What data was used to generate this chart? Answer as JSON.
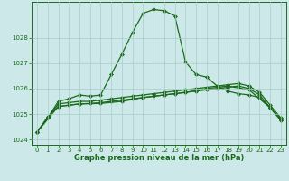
{
  "title": "Graphe pression niveau de la mer (hPa)",
  "bg_color": "#cce8e8",
  "grid_color": "#aacccc",
  "line_color": "#1a6b1a",
  "xlim": [
    -0.5,
    23.5
  ],
  "ylim": [
    1023.8,
    1029.4
  ],
  "yticks": [
    1024,
    1025,
    1026,
    1027,
    1028
  ],
  "xticks": [
    0,
    1,
    2,
    3,
    4,
    5,
    6,
    7,
    8,
    9,
    10,
    11,
    12,
    13,
    14,
    15,
    16,
    17,
    18,
    19,
    20,
    21,
    22,
    23
  ],
  "series_main": {
    "x": [
      0,
      1,
      2,
      3,
      4,
      5,
      6,
      7,
      8,
      9,
      10,
      11,
      12,
      13,
      14,
      15,
      16,
      17,
      18,
      19,
      20,
      21,
      22,
      23
    ],
    "y": [
      1024.3,
      1024.85,
      1025.5,
      1025.6,
      1025.75,
      1025.7,
      1025.75,
      1026.55,
      1027.35,
      1028.2,
      1028.95,
      1029.1,
      1029.05,
      1028.85,
      1027.05,
      1026.55,
      1026.45,
      1026.1,
      1025.9,
      1025.8,
      1025.75,
      1025.65,
      1025.25,
      1024.8
    ]
  },
  "series_flat1": {
    "x": [
      0,
      1,
      2,
      3,
      4,
      5,
      6,
      7,
      8,
      9,
      10,
      11,
      12,
      13,
      14,
      15,
      16,
      17,
      18,
      19,
      20,
      21,
      22,
      23
    ],
    "y": [
      1024.3,
      1024.85,
      1025.4,
      1025.45,
      1025.5,
      1025.5,
      1025.55,
      1025.6,
      1025.65,
      1025.7,
      1025.75,
      1025.8,
      1025.85,
      1025.9,
      1025.95,
      1026.0,
      1026.05,
      1026.1,
      1026.15,
      1026.2,
      1026.1,
      1025.85,
      1025.35,
      1024.85
    ]
  },
  "series_flat2": {
    "x": [
      0,
      1,
      2,
      3,
      4,
      5,
      6,
      7,
      8,
      9,
      10,
      11,
      12,
      13,
      14,
      15,
      16,
      17,
      18,
      19,
      20,
      21,
      22,
      23
    ],
    "y": [
      1024.3,
      1024.9,
      1025.3,
      1025.35,
      1025.4,
      1025.42,
      1025.45,
      1025.5,
      1025.55,
      1025.6,
      1025.65,
      1025.7,
      1025.75,
      1025.8,
      1025.85,
      1025.9,
      1025.95,
      1026.0,
      1026.05,
      1026.1,
      1026.0,
      1025.75,
      1025.25,
      1024.75
    ]
  },
  "series_flat3": {
    "x": [
      0,
      2,
      4,
      6,
      8,
      10,
      12,
      14,
      16,
      18,
      20,
      22,
      23
    ],
    "y": [
      1024.3,
      1025.3,
      1025.4,
      1025.42,
      1025.5,
      1025.65,
      1025.75,
      1025.85,
      1026.0,
      1026.1,
      1025.95,
      1025.25,
      1024.8
    ]
  }
}
